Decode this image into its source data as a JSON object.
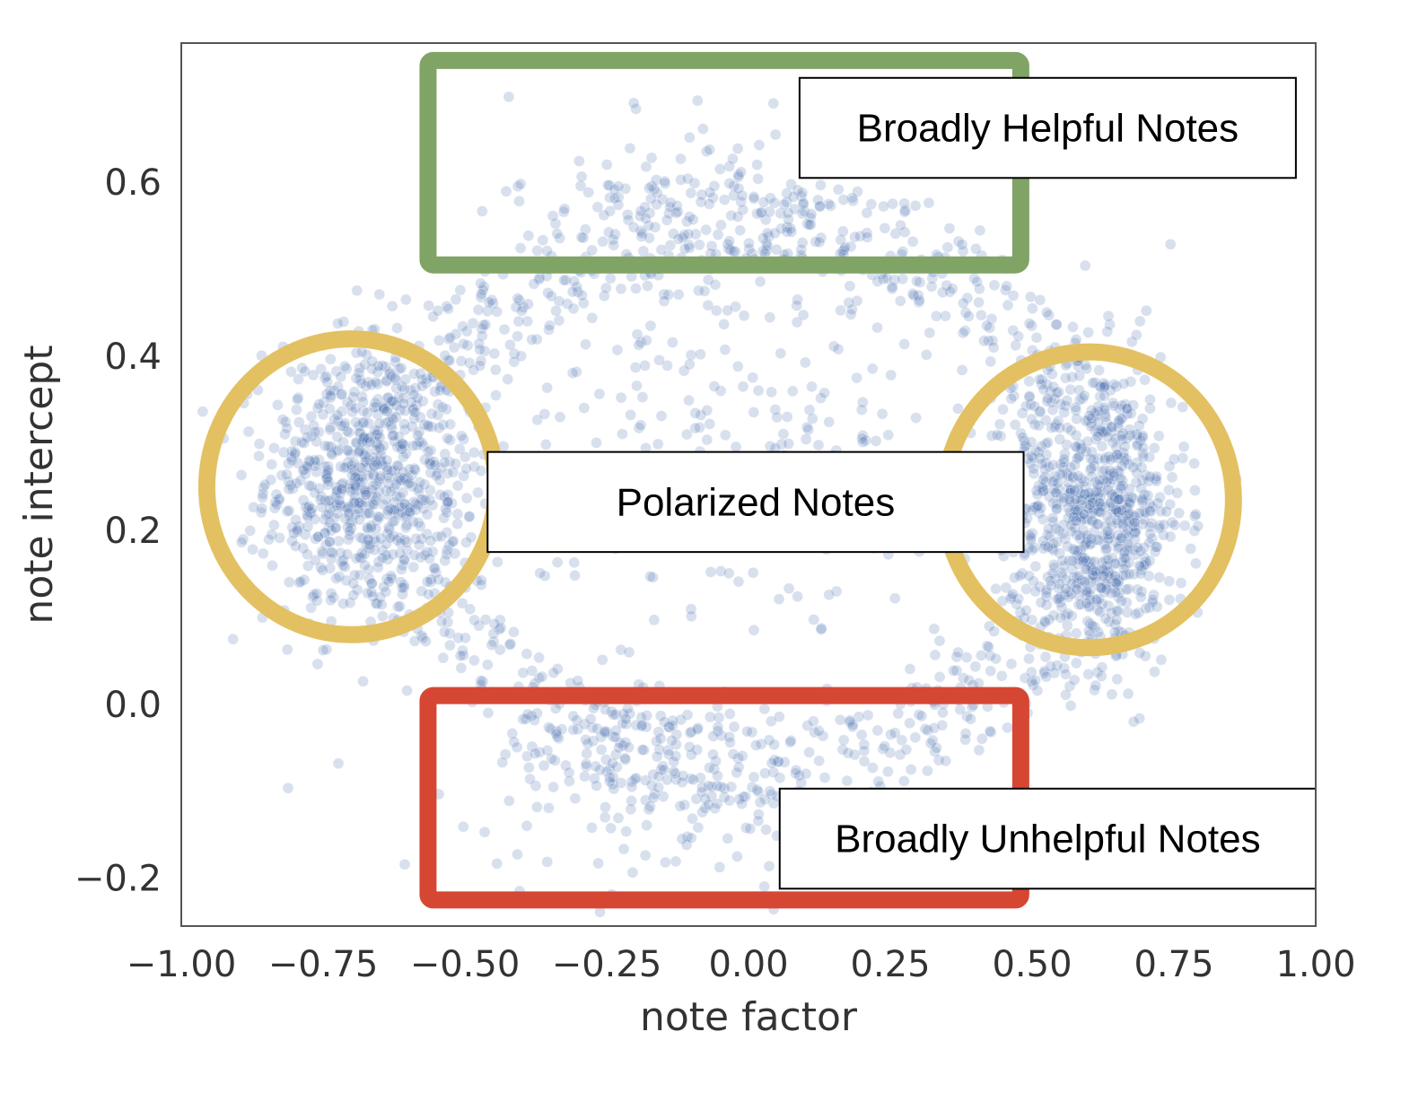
{
  "chart_data": {
    "type": "scatter",
    "xlabel": "note factor",
    "ylabel": "note intercept",
    "xlim": [
      -1.0,
      1.0
    ],
    "ylim": [
      -0.255,
      0.76
    ],
    "grid": false,
    "x_ticks": [
      "−1.00",
      "−0.75",
      "−0.50",
      "−0.25",
      "0.00",
      "0.25",
      "0.50",
      "0.75",
      "1.00"
    ],
    "x_tick_values": [
      -1.0,
      -0.75,
      -0.5,
      -0.25,
      0.0,
      0.25,
      0.5,
      0.75,
      1.0
    ],
    "y_ticks": [
      "−0.2",
      "0.0",
      "0.2",
      "0.4",
      "0.6"
    ],
    "y_tick_values": [
      -0.2,
      0.0,
      0.2,
      0.4,
      0.6
    ],
    "point_color": "#3a65a8",
    "clusters": [
      {
        "kind": "blob",
        "cx": -0.68,
        "cy": 0.26,
        "sx": 0.085,
        "sy": 0.085,
        "count": 700
      },
      {
        "kind": "blob",
        "cx": 0.62,
        "cy": 0.22,
        "sx": 0.075,
        "sy": 0.09,
        "count": 700
      },
      {
        "kind": "arc",
        "cx": 0.0,
        "cy": 0.24,
        "rx": 0.6,
        "ry": 0.33,
        "count": 900
      },
      {
        "kind": "blob",
        "cx": -0.1,
        "cy": 0.55,
        "sx": 0.16,
        "sy": 0.08,
        "count": 160
      },
      {
        "kind": "blob",
        "cx": -0.15,
        "cy": -0.08,
        "sx": 0.17,
        "sy": 0.06,
        "count": 180
      },
      {
        "kind": "blob",
        "cx": 0.0,
        "cy": 0.28,
        "sx": 0.3,
        "sy": 0.12,
        "count": 280
      }
    ],
    "annotations": [
      {
        "shape": "rect",
        "color": "#80a366",
        "x0": -0.565,
        "x1": 0.48,
        "y0": 0.505,
        "y1": 0.74
      },
      {
        "shape": "rect",
        "color": "#d64733",
        "x0": -0.565,
        "x1": 0.48,
        "y0": -0.225,
        "y1": 0.01
      },
      {
        "shape": "ellipse",
        "color": "#e3c162",
        "cx": -0.7,
        "cy": 0.25,
        "rx": 0.255,
        "ry": 0.17
      },
      {
        "shape": "ellipse",
        "color": "#e3c162",
        "cx": 0.6,
        "cy": 0.235,
        "rx": 0.255,
        "ry": 0.17
      }
    ],
    "labels": [
      {
        "text": "Broadly Helpful Notes",
        "x0": 0.09,
        "x1": 0.965,
        "y0": 0.605,
        "y1": 0.72
      },
      {
        "text": "Polarized Notes",
        "x0": -0.46,
        "x1": 0.485,
        "y0": 0.175,
        "y1": 0.29
      },
      {
        "text": "Broadly Unhelpful Notes",
        "x0": 0.055,
        "x1": 1.0,
        "y0": -0.212,
        "y1": -0.097
      }
    ]
  }
}
